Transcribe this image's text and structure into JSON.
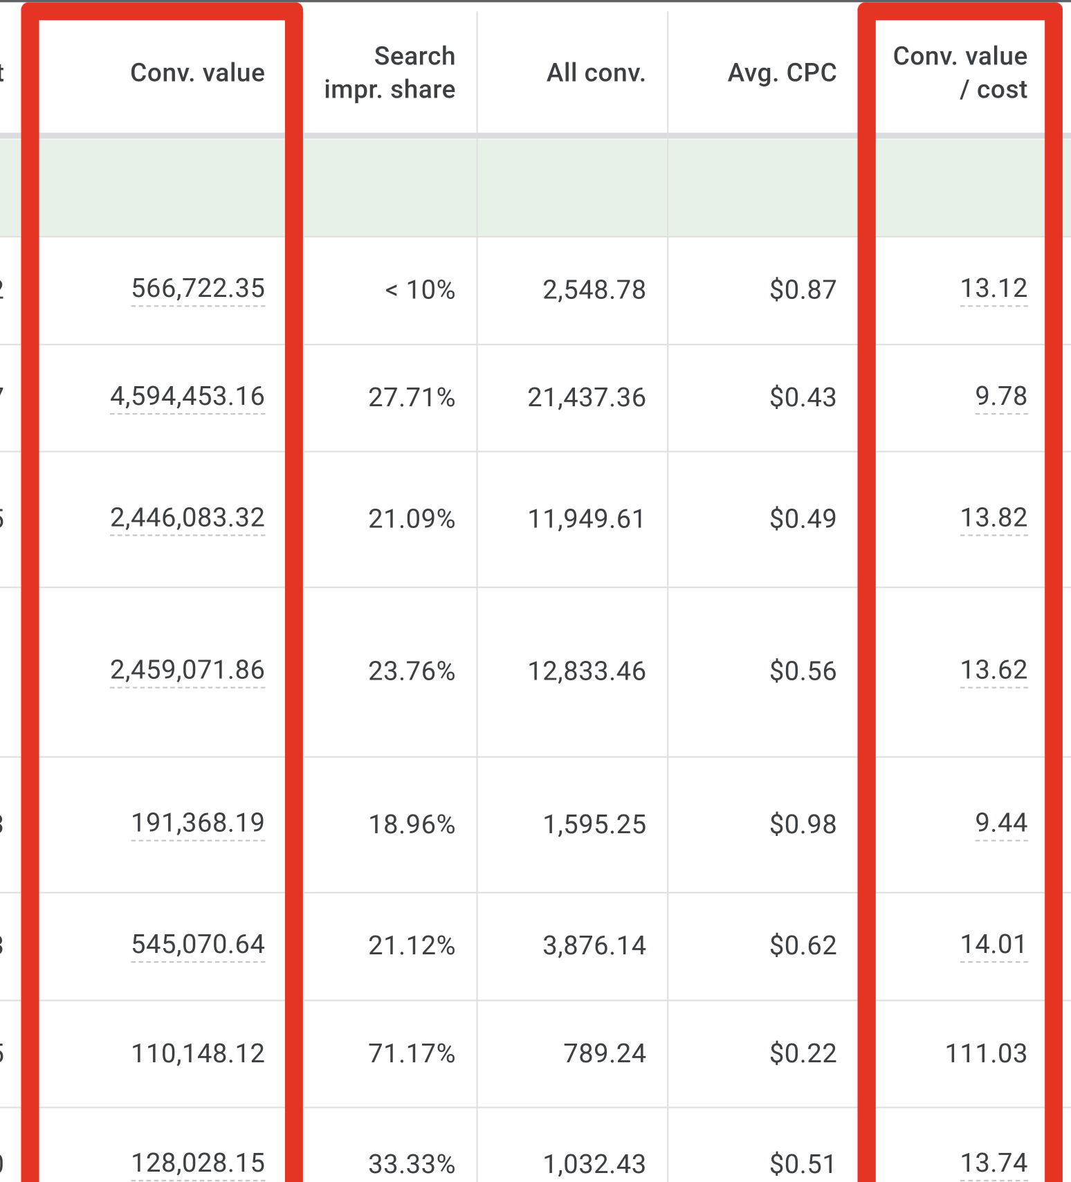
{
  "table": {
    "headers": [
      "t",
      "Conv. value",
      "Search\nimpr. share",
      "All conv.",
      "Avg. CPC",
      "Conv. value\n/ cost"
    ],
    "rows": [
      {
        "cut": "2",
        "cells": [
          "566,722.35",
          "< 10%",
          "2,548.78",
          "$0.87",
          "13.12"
        ],
        "underlined": true
      },
      {
        "cut": "7",
        "cells": [
          "4,594,453.16",
          "27.71%",
          "21,437.36",
          "$0.43",
          "9.78"
        ],
        "underlined": true
      },
      {
        "cut": "5",
        "cells": [
          "2,446,083.32",
          "21.09%",
          "11,949.61",
          "$0.49",
          "13.82"
        ],
        "underlined": true
      },
      {
        "cells": [
          "2,459,071.86",
          "23.76%",
          "12,833.46",
          "$0.56",
          "13.62"
        ],
        "underlined": true
      },
      {
        "cut": "3",
        "cells": [
          "191,368.19",
          "18.96%",
          "1,595.25",
          "$0.98",
          "9.44"
        ],
        "underlined": true
      },
      {
        "cut": "3",
        "cells": [
          "545,070.64",
          "21.12%",
          "3,876.14",
          "$0.62",
          "14.01"
        ],
        "underlined": true
      },
      {
        "cut": "5",
        "cells": [
          "110,148.12",
          "71.17%",
          "789.24",
          "$0.22",
          "111.03"
        ],
        "underlined": false
      },
      {
        "cut": "0",
        "cells": [
          "128,028.15",
          "33.33%",
          "1,032.43",
          "$0.51",
          "13.74"
        ],
        "underlined": true
      }
    ]
  }
}
